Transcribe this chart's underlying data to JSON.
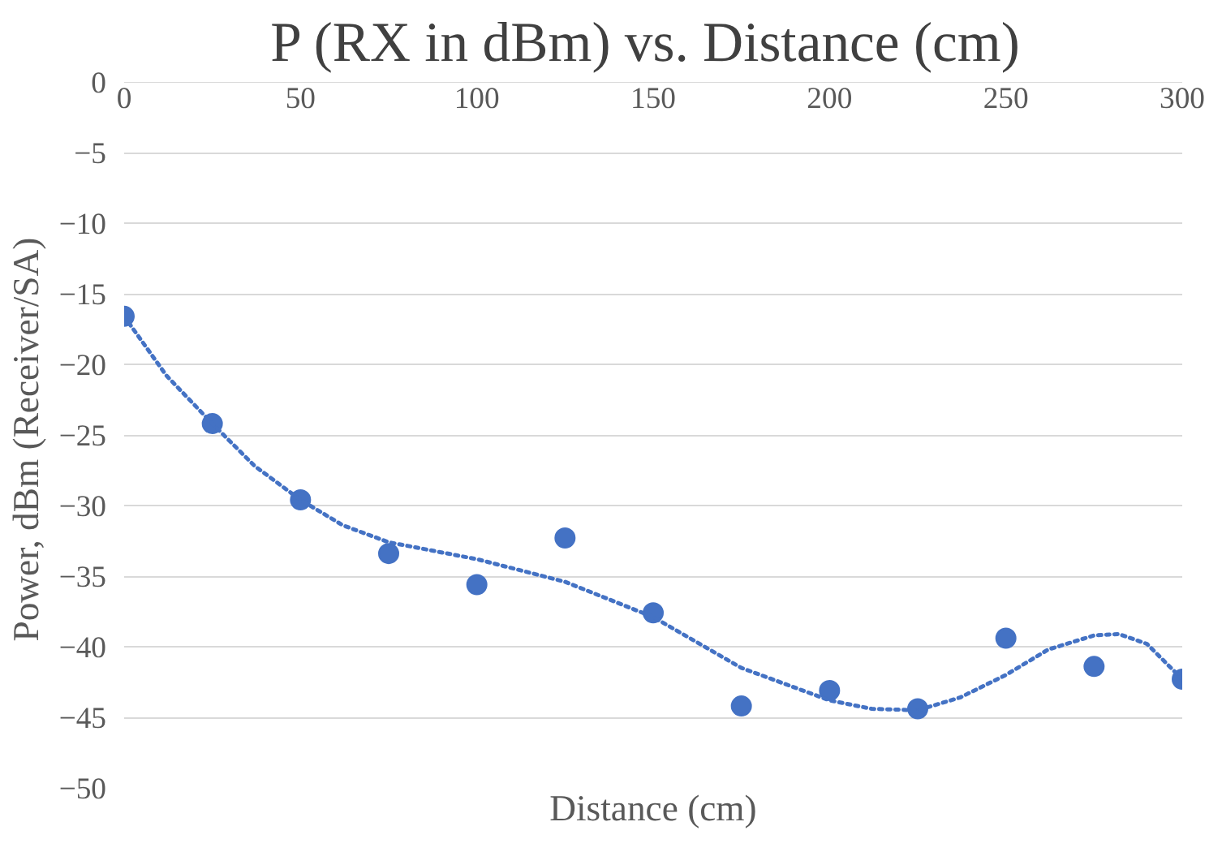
{
  "chart_data": {
    "type": "scatter",
    "title": "P (RX in dBm)  vs. Distance (cm)",
    "xlabel": "Distance (cm)",
    "ylabel": "Power, dBm  (Receiver/SA)",
    "xlim": [
      0,
      300
    ],
    "xticks": [
      0,
      50,
      100,
      150,
      200,
      250,
      300
    ],
    "ylim": [
      -50,
      0
    ],
    "yticks": [
      0,
      -5,
      -10,
      -15,
      -20,
      -25,
      -30,
      -35,
      -40,
      -45,
      -50
    ],
    "grid": "y",
    "series": [
      {
        "marker": "circle",
        "color": "#4472c4",
        "x": [
          0,
          25,
          50,
          75,
          100,
          125,
          150,
          175,
          200,
          225,
          250,
          275,
          300
        ],
        "values": [
          -16.6,
          -24.2,
          -29.6,
          -33.4,
          -35.6,
          -32.3,
          -37.6,
          -44.2,
          -43.1,
          -44.4,
          -39.4,
          -41.4,
          -42.3
        ]
      },
      {
        "type": "line",
        "marker": "none",
        "line_style": "dotted",
        "color": "#4472c4",
        "x": [
          0,
          12,
          25,
          37,
          50,
          62,
          75,
          100,
          125,
          150,
          175,
          200,
          212,
          225,
          237,
          250,
          262,
          275,
          282,
          290,
          300
        ],
        "values": [
          -16.6,
          -20.8,
          -24.2,
          -27.2,
          -29.6,
          -31.4,
          -32.6,
          -33.8,
          -35.4,
          -37.9,
          -41.5,
          -43.8,
          -44.4,
          -44.5,
          -43.6,
          -42,
          -40.2,
          -39.2,
          -39.1,
          -39.8,
          -42.3
        ]
      }
    ]
  }
}
